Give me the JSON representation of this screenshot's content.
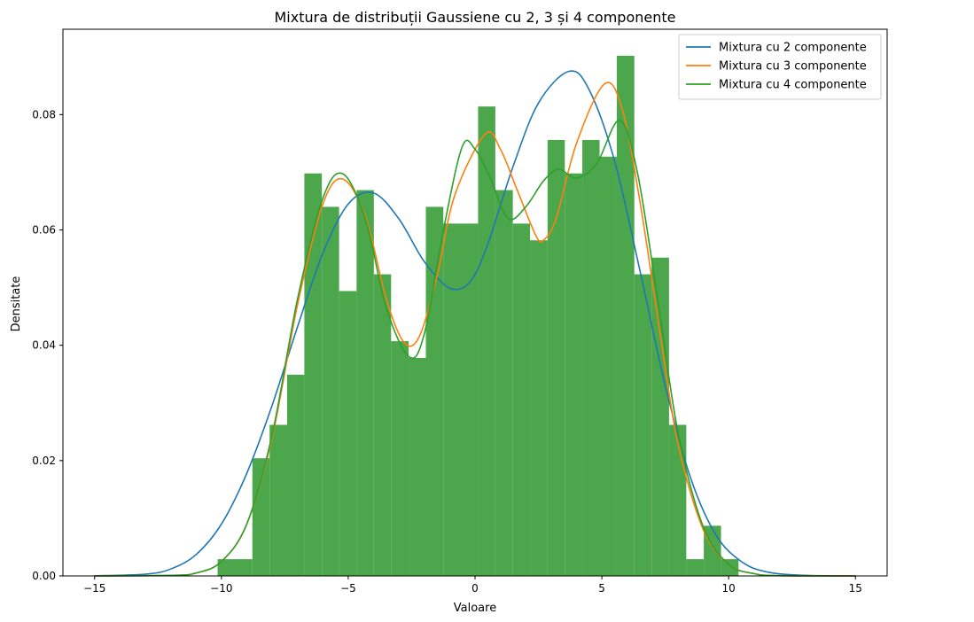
{
  "chart_data": {
    "type": "bar",
    "title": "Mixtura de distribuții Gaussiene cu 2, 3 și 4 componente",
    "xlabel": "Valoare",
    "ylabel": "Densitate",
    "xlim": [
      -16.25,
      16.25
    ],
    "ylim": [
      0,
      0.0948
    ],
    "xticks": [
      -15,
      -10,
      -5,
      0,
      5,
      10,
      15
    ],
    "yticks": [
      0.0,
      0.02,
      0.04,
      0.06,
      0.08
    ],
    "ytick_labels": [
      "0.00",
      "0.02",
      "0.04",
      "0.06",
      "0.08"
    ],
    "grid": false,
    "legend_position": "top-right",
    "histogram": {
      "color": "#4ca64c",
      "bins": [
        {
          "x0": -10.15,
          "x1": -8.78,
          "value": 0.0029
        },
        {
          "x0": -8.78,
          "x1": -8.1,
          "value": 0.0204
        },
        {
          "x0": -8.1,
          "x1": -7.41,
          "value": 0.0262
        },
        {
          "x0": -7.41,
          "x1": -6.73,
          "value": 0.0349
        },
        {
          "x0": -6.73,
          "x1": -6.04,
          "value": 0.0698
        },
        {
          "x0": -6.04,
          "x1": -5.36,
          "value": 0.064
        },
        {
          "x0": -5.36,
          "x1": -4.67,
          "value": 0.0494
        },
        {
          "x0": -4.67,
          "x1": -3.99,
          "value": 0.0669
        },
        {
          "x0": -3.99,
          "x1": -3.31,
          "value": 0.0523
        },
        {
          "x0": -3.31,
          "x1": -2.62,
          "value": 0.0407
        },
        {
          "x0": -2.62,
          "x1": -1.94,
          "value": 0.0378
        },
        {
          "x0": -1.94,
          "x1": -1.25,
          "value": 0.064
        },
        {
          "x0": -1.25,
          "x1": 0.12,
          "value": 0.0611
        },
        {
          "x0": 0.12,
          "x1": 0.8,
          "value": 0.0814
        },
        {
          "x0": 0.8,
          "x1": 1.49,
          "value": 0.0669
        },
        {
          "x0": 1.49,
          "x1": 2.17,
          "value": 0.0611
        },
        {
          "x0": 2.17,
          "x1": 2.86,
          "value": 0.0582
        },
        {
          "x0": 2.86,
          "x1": 3.54,
          "value": 0.0756
        },
        {
          "x0": 3.54,
          "x1": 4.23,
          "value": 0.0698
        },
        {
          "x0": 4.23,
          "x1": 4.91,
          "value": 0.0756
        },
        {
          "x0": 4.91,
          "x1": 5.59,
          "value": 0.0727
        },
        {
          "x0": 5.59,
          "x1": 6.28,
          "value": 0.0902
        },
        {
          "x0": 6.28,
          "x1": 6.96,
          "value": 0.0523
        },
        {
          "x0": 6.96,
          "x1": 7.65,
          "value": 0.0552
        },
        {
          "x0": 7.65,
          "x1": 8.33,
          "value": 0.0262
        },
        {
          "x0": 8.33,
          "x1": 9.02,
          "value": 0.0029
        },
        {
          "x0": 9.02,
          "x1": 9.7,
          "value": 0.0087
        },
        {
          "x0": 9.7,
          "x1": 10.39,
          "value": 0.0029
        }
      ]
    },
    "series": [
      {
        "name": "Mixtura cu 2 componente",
        "color": "#1f77b4",
        "points": [
          [
            -15,
            3e-05
          ],
          [
            -13,
            0.0003
          ],
          [
            -12,
            0.0012
          ],
          [
            -11,
            0.0037
          ],
          [
            -10,
            0.009
          ],
          [
            -9,
            0.0178
          ],
          [
            -8,
            0.0296
          ],
          [
            -7,
            0.0432
          ],
          [
            -6,
            0.056
          ],
          [
            -5,
            0.0645
          ],
          [
            -4,
            0.0664
          ],
          [
            -3,
            0.0619
          ],
          [
            -2,
            0.0545
          ],
          [
            -1,
            0.0499
          ],
          [
            -0.2,
            0.051
          ],
          [
            0.5,
            0.0575
          ],
          [
            1.5,
            0.071
          ],
          [
            2.5,
            0.082
          ],
          [
            3.7,
            0.0875
          ],
          [
            4.5,
            0.0843
          ],
          [
            5.5,
            0.072
          ],
          [
            6.5,
            0.053
          ],
          [
            7.5,
            0.033
          ],
          [
            8.5,
            0.017
          ],
          [
            9.5,
            0.0071
          ],
          [
            10.5,
            0.0025
          ],
          [
            11.5,
            0.0007
          ],
          [
            13,
            0.0001
          ],
          [
            15,
            1e-05
          ]
        ]
      },
      {
        "name": "Mixtura cu 3 componente",
        "color": "#ff7f0e",
        "points": [
          [
            -15,
            0.0
          ],
          [
            -12,
            0.0001
          ],
          [
            -11,
            0.0005
          ],
          [
            -10,
            0.0025
          ],
          [
            -9,
            0.009
          ],
          [
            -8,
            0.024
          ],
          [
            -7,
            0.047
          ],
          [
            -6,
            0.0645
          ],
          [
            -5.2,
            0.0688
          ],
          [
            -4.3,
            0.062
          ],
          [
            -3.5,
            0.048
          ],
          [
            -2.8,
            0.0405
          ],
          [
            -2.2,
            0.0415
          ],
          [
            -1.5,
            0.052
          ],
          [
            -0.8,
            0.066
          ],
          [
            0.4,
            0.0766
          ],
          [
            1.0,
            0.074
          ],
          [
            1.7,
            0.0665
          ],
          [
            2.4,
            0.059
          ],
          [
            2.7,
            0.0582
          ],
          [
            3.2,
            0.062
          ],
          [
            4.0,
            0.075
          ],
          [
            5.1,
            0.0853
          ],
          [
            5.8,
            0.081
          ],
          [
            6.5,
            0.065
          ],
          [
            7.3,
            0.042
          ],
          [
            8.0,
            0.023
          ],
          [
            9.0,
            0.008
          ],
          [
            10.0,
            0.002
          ],
          [
            11,
            0.0004
          ],
          [
            12,
            5e-05
          ],
          [
            15,
            0.0
          ]
        ]
      },
      {
        "name": "Mixtura cu 4 componente",
        "color": "#2ca02c",
        "points": [
          [
            -15,
            0.0
          ],
          [
            -12,
            0.0001
          ],
          [
            -11,
            0.0005
          ],
          [
            -10,
            0.0025
          ],
          [
            -9,
            0.009
          ],
          [
            -8,
            0.0245
          ],
          [
            -7,
            0.048
          ],
          [
            -6,
            0.0655
          ],
          [
            -5.2,
            0.0697
          ],
          [
            -4.3,
            0.0615
          ],
          [
            -3.5,
            0.0465
          ],
          [
            -2.6,
            0.038
          ],
          [
            -2.0,
            0.042
          ],
          [
            -1.2,
            0.061
          ],
          [
            -0.5,
            0.0745
          ],
          [
            0.0,
            0.074
          ],
          [
            0.6,
            0.069
          ],
          [
            1.3,
            0.062
          ],
          [
            2.0,
            0.064
          ],
          [
            2.7,
            0.0685
          ],
          [
            3.3,
            0.0705
          ],
          [
            4.0,
            0.069
          ],
          [
            4.8,
            0.0715
          ],
          [
            5.7,
            0.079
          ],
          [
            6.4,
            0.07
          ],
          [
            7.2,
            0.048
          ],
          [
            8.0,
            0.025
          ],
          [
            9.0,
            0.0085
          ],
          [
            10.0,
            0.002
          ],
          [
            11,
            0.0004
          ],
          [
            12,
            5e-05
          ],
          [
            15,
            0.0
          ]
        ]
      }
    ]
  }
}
